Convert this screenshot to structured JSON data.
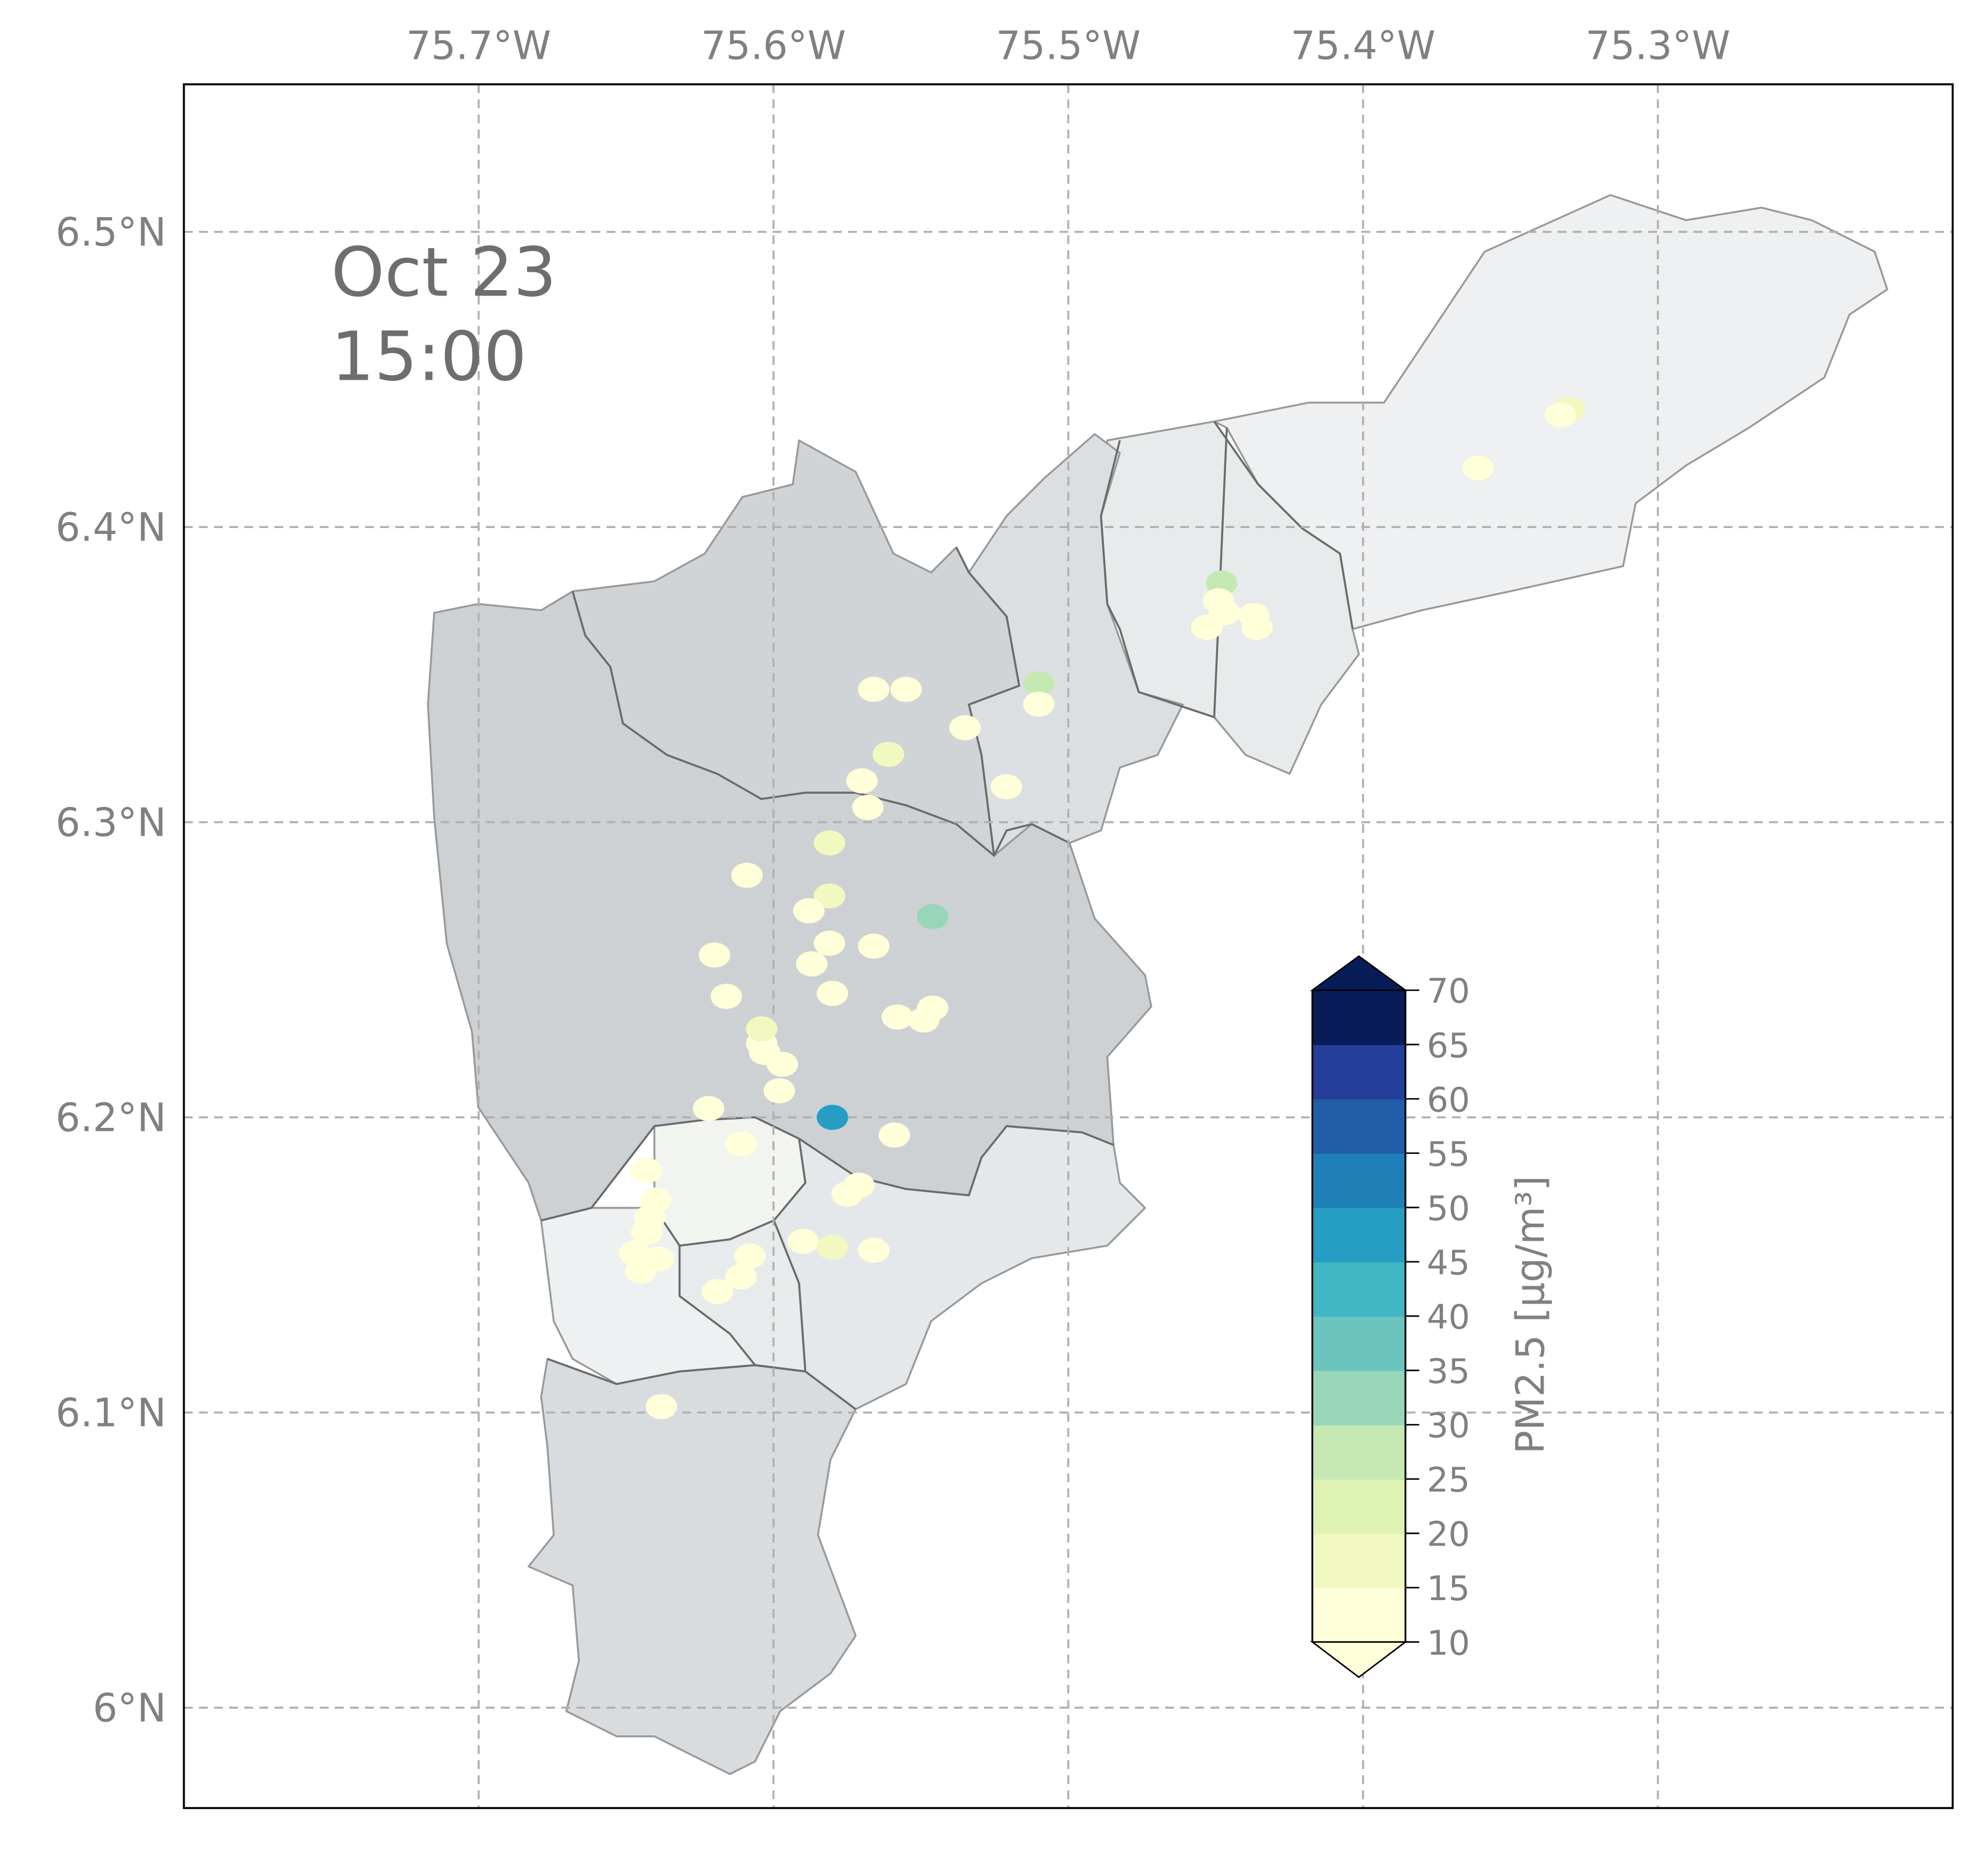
{
  "annotation": {
    "date": "Oct 23",
    "time": "15:00"
  },
  "chart_data": {
    "type": "scatter",
    "title": "",
    "xlim": [
      -75.8,
      -75.2
    ],
    "ylim": [
      5.966,
      6.55
    ],
    "grid": true,
    "x_ticks": [
      -75.7,
      -75.6,
      -75.5,
      -75.4,
      -75.3
    ],
    "x_tick_labels": [
      "75.7°W",
      "75.6°W",
      "75.5°W",
      "75.4°W",
      "75.3°W"
    ],
    "y_ticks": [
      6.5,
      6.4,
      6.3,
      6.2,
      6.1,
      6.0
    ],
    "y_tick_labels": [
      "6.5°N",
      "6.4°N",
      "6.3°N",
      "6.2°N",
      "6.1°N",
      "6°N"
    ],
    "colorbar": {
      "label": "PM2.5 [μg/m³]",
      "levels": [
        10,
        15,
        20,
        25,
        30,
        35,
        40,
        45,
        50,
        55,
        60,
        65,
        70
      ],
      "tick_labels": [
        "10",
        "15",
        "20",
        "25",
        "30",
        "35",
        "40",
        "45",
        "50",
        "55",
        "60",
        "65",
        "70"
      ],
      "colors": [
        "#ffffd9",
        "#f1f9c0",
        "#dff3b2",
        "#c6e9b4",
        "#97d6b9",
        "#6bc5be",
        "#41b6c4",
        "#269ec3",
        "#1f80b8",
        "#225da8",
        "#243f99",
        "#081d58"
      ],
      "extend": "both",
      "under_color": "#ffffd9",
      "over_color": "#081d58"
    },
    "points": [
      {
        "lon": -75.33,
        "lat": 6.44,
        "pm25": 18
      },
      {
        "lon": -75.333,
        "lat": 6.438,
        "pm25": 12
      },
      {
        "lon": -75.361,
        "lat": 6.42,
        "pm25": 12
      },
      {
        "lon": -75.448,
        "lat": 6.381,
        "pm25": 27
      },
      {
        "lon": -75.449,
        "lat": 6.375,
        "pm25": 12
      },
      {
        "lon": -75.447,
        "lat": 6.371,
        "pm25": 12
      },
      {
        "lon": -75.453,
        "lat": 6.366,
        "pm25": 12
      },
      {
        "lon": -75.437,
        "lat": 6.37,
        "pm25": 12
      },
      {
        "lon": -75.436,
        "lat": 6.366,
        "pm25": 12
      },
      {
        "lon": -75.566,
        "lat": 6.345,
        "pm25": 12
      },
      {
        "lon": -75.555,
        "lat": 6.345,
        "pm25": 12
      },
      {
        "lon": -75.51,
        "lat": 6.347,
        "pm25": 27
      },
      {
        "lon": -75.51,
        "lat": 6.34,
        "pm25": 12
      },
      {
        "lon": -75.535,
        "lat": 6.332,
        "pm25": 12
      },
      {
        "lon": -75.561,
        "lat": 6.323,
        "pm25": 17
      },
      {
        "lon": -75.57,
        "lat": 6.314,
        "pm25": 12
      },
      {
        "lon": -75.568,
        "lat": 6.305,
        "pm25": 12
      },
      {
        "lon": -75.521,
        "lat": 6.312,
        "pm25": 12
      },
      {
        "lon": -75.581,
        "lat": 6.293,
        "pm25": 17
      },
      {
        "lon": -75.609,
        "lat": 6.282,
        "pm25": 12
      },
      {
        "lon": -75.581,
        "lat": 6.275,
        "pm25": 17
      },
      {
        "lon": -75.588,
        "lat": 6.27,
        "pm25": 12
      },
      {
        "lon": -75.546,
        "lat": 6.268,
        "pm25": 32
      },
      {
        "lon": -75.581,
        "lat": 6.259,
        "pm25": 12
      },
      {
        "lon": -75.566,
        "lat": 6.258,
        "pm25": 12
      },
      {
        "lon": -75.587,
        "lat": 6.252,
        "pm25": 12
      },
      {
        "lon": -75.62,
        "lat": 6.255,
        "pm25": 12
      },
      {
        "lon": -75.616,
        "lat": 6.241,
        "pm25": 12
      },
      {
        "lon": -75.58,
        "lat": 6.242,
        "pm25": 12
      },
      {
        "lon": -75.558,
        "lat": 6.234,
        "pm25": 12
      },
      {
        "lon": -75.546,
        "lat": 6.237,
        "pm25": 12
      },
      {
        "lon": -75.549,
        "lat": 6.233,
        "pm25": 12
      },
      {
        "lon": -75.604,
        "lat": 6.225,
        "pm25": 12
      },
      {
        "lon": -75.603,
        "lat": 6.222,
        "pm25": 12
      },
      {
        "lon": -75.604,
        "lat": 6.23,
        "pm25": 17
      },
      {
        "lon": -75.597,
        "lat": 6.218,
        "pm25": 12
      },
      {
        "lon": -75.598,
        "lat": 6.209,
        "pm25": 12
      },
      {
        "lon": -75.58,
        "lat": 6.2,
        "pm25": 47
      },
      {
        "lon": -75.622,
        "lat": 6.203,
        "pm25": 12
      },
      {
        "lon": -75.559,
        "lat": 6.194,
        "pm25": 12
      },
      {
        "lon": -75.611,
        "lat": 6.191,
        "pm25": 12
      },
      {
        "lon": -75.643,
        "lat": 6.182,
        "pm25": 12
      },
      {
        "lon": -75.571,
        "lat": 6.177,
        "pm25": 12
      },
      {
        "lon": -75.575,
        "lat": 6.174,
        "pm25": 12
      },
      {
        "lon": -75.64,
        "lat": 6.172,
        "pm25": 12
      },
      {
        "lon": -75.642,
        "lat": 6.166,
        "pm25": 12
      },
      {
        "lon": -75.643,
        "lat": 6.161,
        "pm25": 12
      },
      {
        "lon": -75.59,
        "lat": 6.158,
        "pm25": 12
      },
      {
        "lon": -75.58,
        "lat": 6.156,
        "pm25": 17
      },
      {
        "lon": -75.566,
        "lat": 6.155,
        "pm25": 12
      },
      {
        "lon": -75.608,
        "lat": 6.153,
        "pm25": 12
      },
      {
        "lon": -75.647,
        "lat": 6.154,
        "pm25": 12
      },
      {
        "lon": -75.639,
        "lat": 6.152,
        "pm25": 12
      },
      {
        "lon": -75.645,
        "lat": 6.148,
        "pm25": 12
      },
      {
        "lon": -75.611,
        "lat": 6.146,
        "pm25": 12
      },
      {
        "lon": -75.619,
        "lat": 6.141,
        "pm25": 12
      },
      {
        "lon": -75.638,
        "lat": 6.102,
        "pm25": 12
      }
    ]
  }
}
